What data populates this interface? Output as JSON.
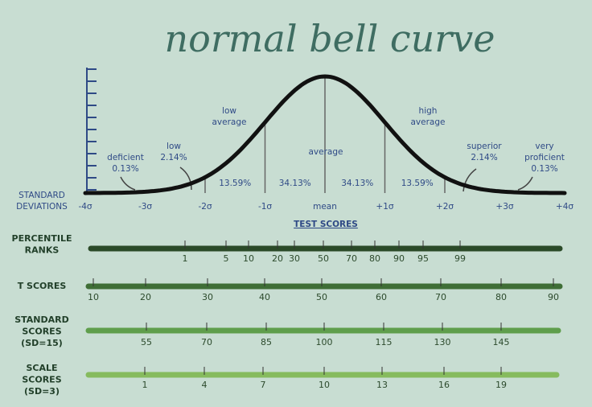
{
  "title": "normal bell curve",
  "curve": {
    "axis_label": [
      "STANDARD",
      "DEVIATIONS"
    ],
    "sigmas": [
      "-4σ",
      "-3σ",
      "-2σ",
      "-1σ",
      "mean",
      "+1σ",
      "+2σ",
      "+3σ",
      "+4σ"
    ],
    "areas": [
      "13.59%",
      "34.13%",
      "34.13%",
      "13.59%"
    ],
    "callouts": [
      {
        "lines": [
          "deficient",
          "0.13%"
        ]
      },
      {
        "lines": [
          "low",
          "2.14%"
        ]
      },
      {
        "lines": [
          "low",
          "average"
        ]
      },
      {
        "lines": [
          "average"
        ]
      },
      {
        "lines": [
          "high",
          "average"
        ]
      },
      {
        "lines": [
          "superior",
          "2.14%"
        ]
      },
      {
        "lines": [
          "very",
          "proficient",
          "0.13%"
        ]
      }
    ]
  },
  "scales": {
    "heading": "TEST SCORES",
    "rows": [
      {
        "name": [
          "PERCENTILE",
          "RANKS"
        ],
        "labels": [
          "1",
          "5",
          "10",
          "20",
          "30",
          "50",
          "70",
          "80",
          "90",
          "95",
          "99"
        ]
      },
      {
        "name": [
          "T SCORES"
        ],
        "labels": [
          "10",
          "20",
          "30",
          "40",
          "50",
          "60",
          "70",
          "80",
          "90"
        ]
      },
      {
        "name": [
          "STANDARD",
          "SCORES",
          "(SD=15)"
        ],
        "labels": [
          "55",
          "70",
          "85",
          "100",
          "115",
          "130",
          "145"
        ]
      },
      {
        "name": [
          "SCALE",
          "SCORES",
          "(SD=3)"
        ],
        "labels": [
          "1",
          "4",
          "7",
          "10",
          "13",
          "16",
          "19"
        ]
      }
    ]
  }
}
